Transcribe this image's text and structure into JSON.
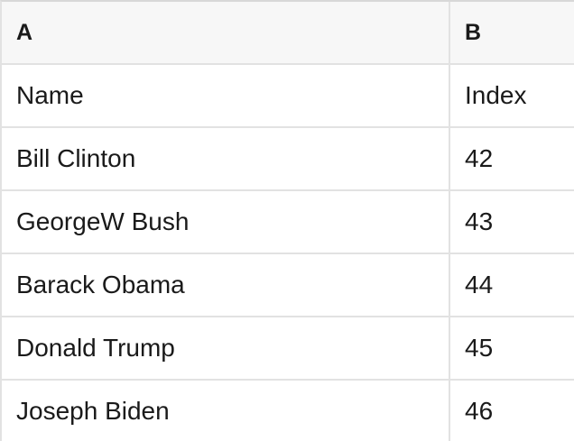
{
  "table": {
    "column_headers": [
      {
        "label": "A"
      },
      {
        "label": "B"
      }
    ],
    "rows": [
      {
        "a": "Name",
        "b": "Index"
      },
      {
        "a": "Bill Clinton",
        "b": "42"
      },
      {
        "a": "GeorgeW Bush",
        "b": "43"
      },
      {
        "a": "Barack Obama",
        "b": "44"
      },
      {
        "a": "Donald Trump",
        "b": "45"
      },
      {
        "a": "Joseph Biden",
        "b": "46"
      }
    ]
  },
  "colors": {
    "header_background": "#f7f7f7",
    "grid_line": "#e2e2e2",
    "top_border": "#d8d8d8",
    "text": "#1a1a1a",
    "cell_background": "#ffffff"
  }
}
